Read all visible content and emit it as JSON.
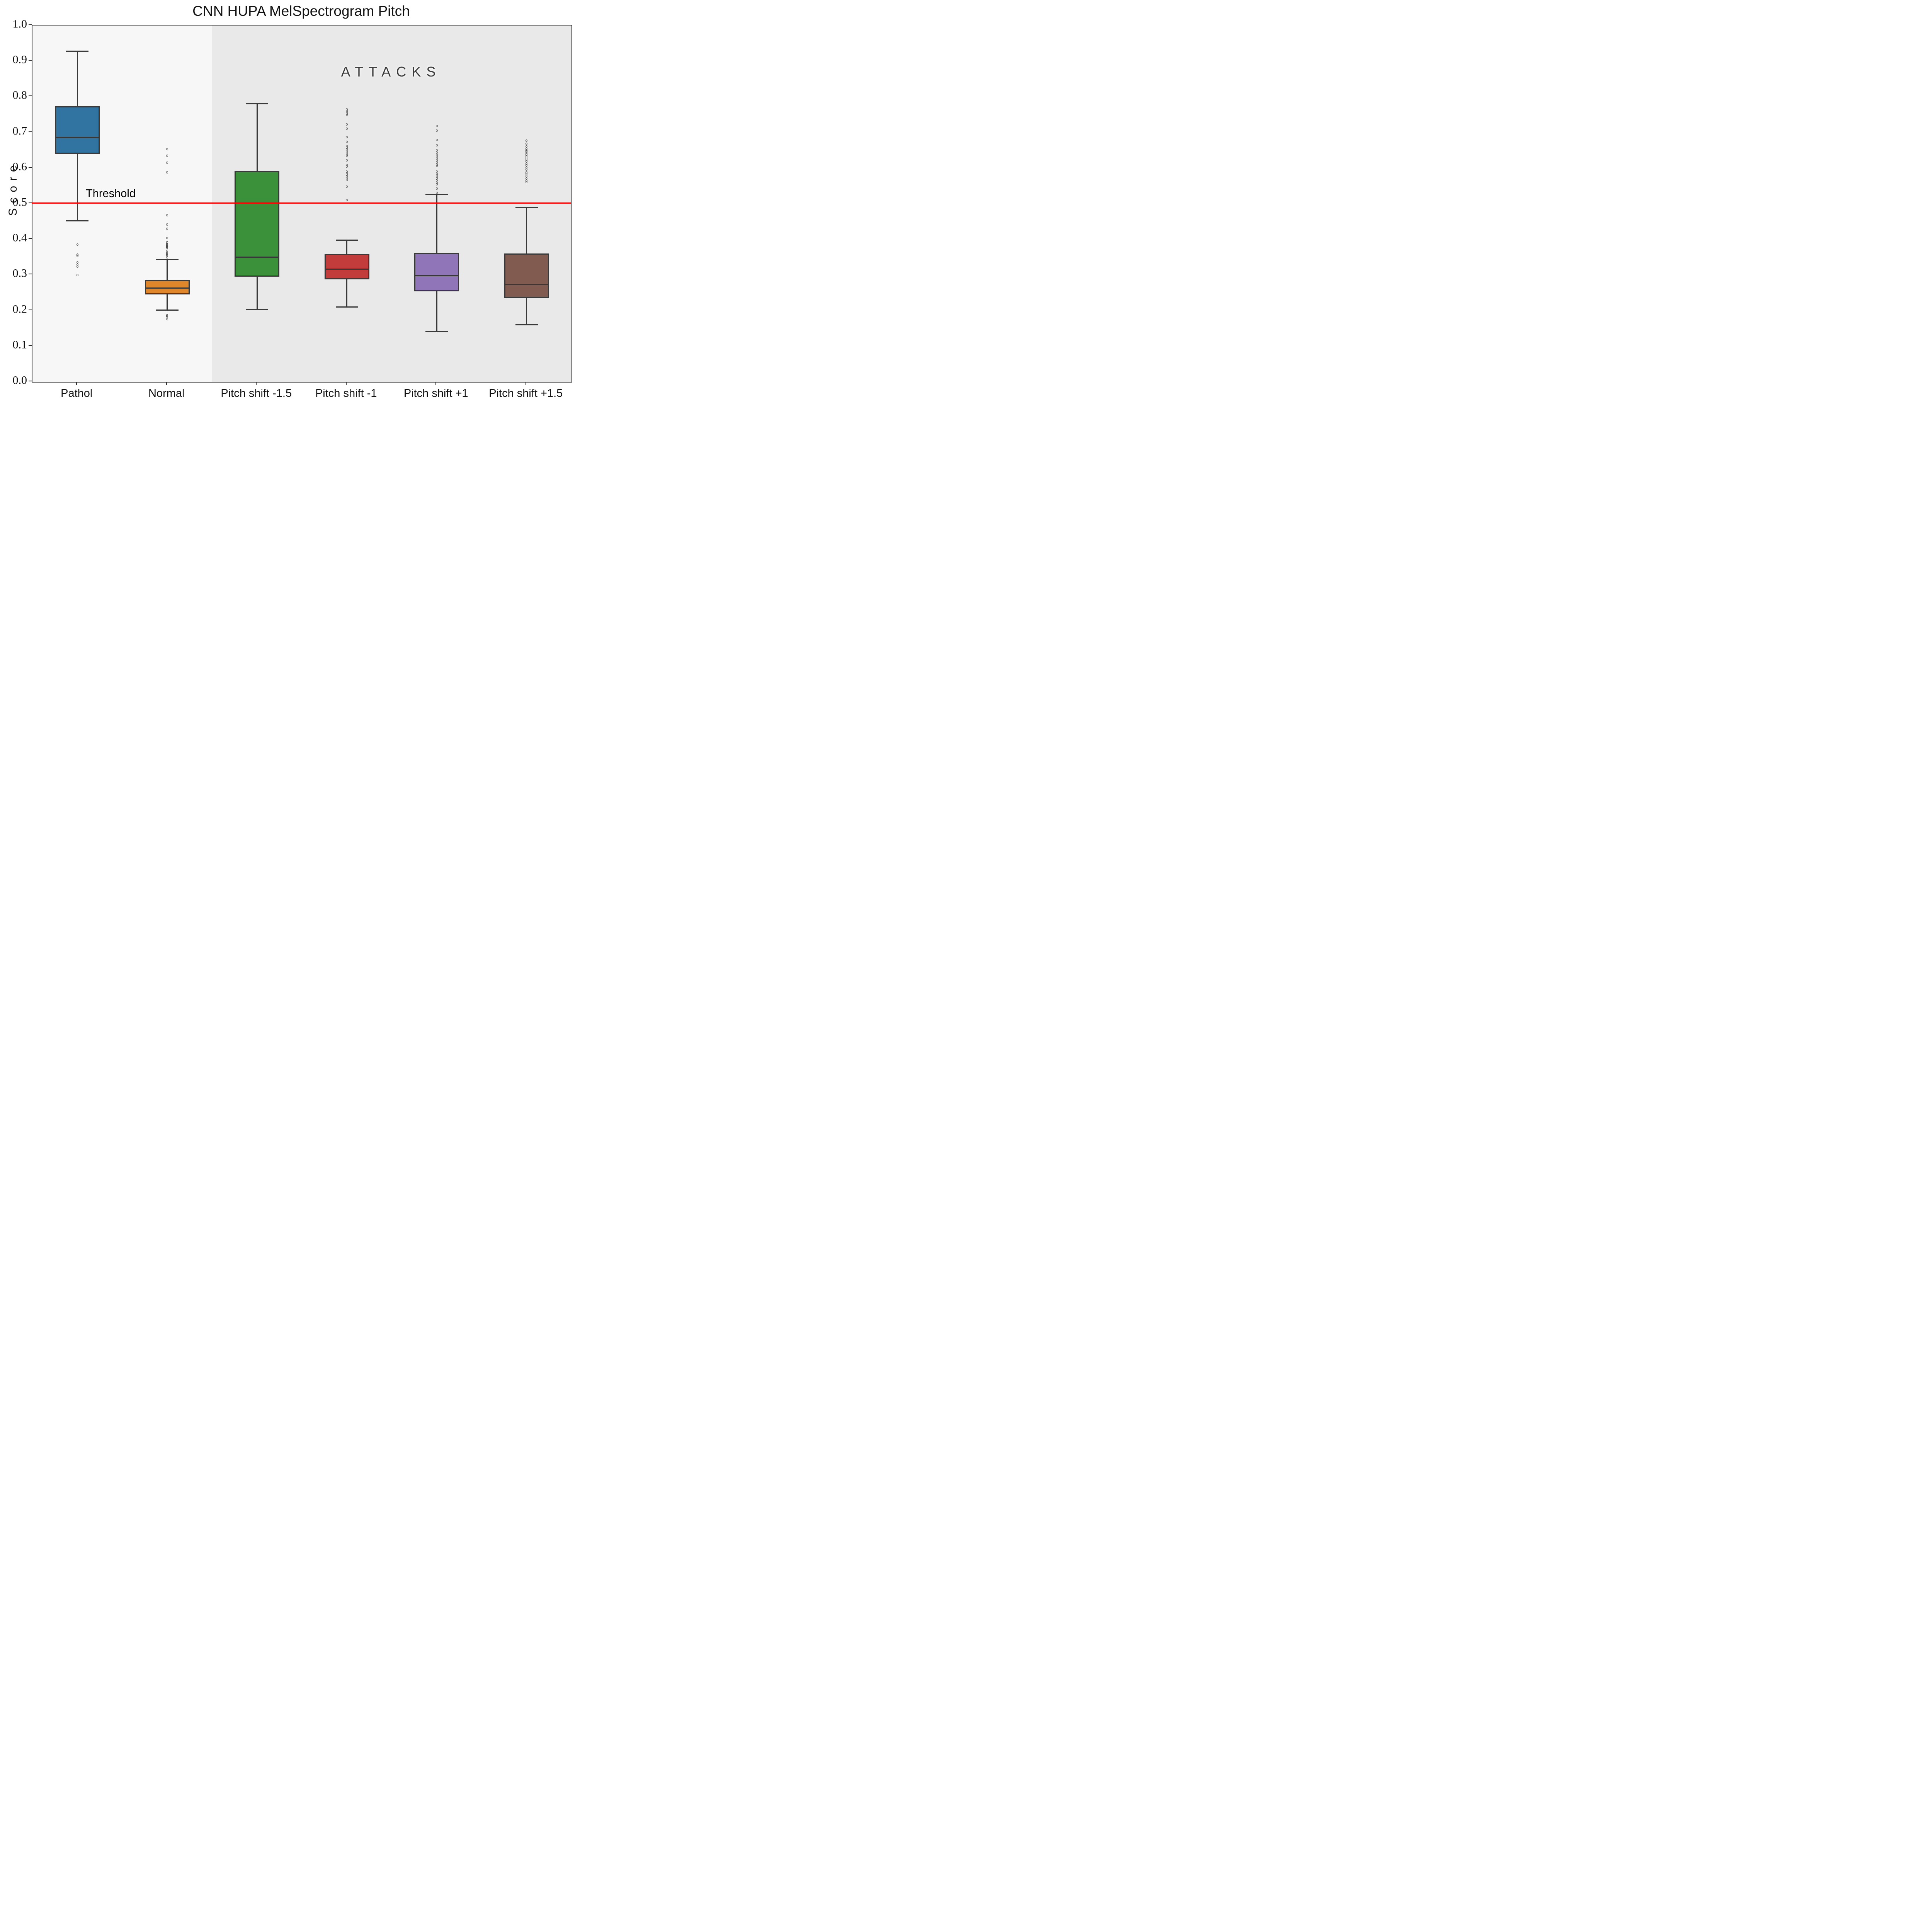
{
  "title": "CNN HUPA MelSpectrogram Pitch",
  "chart_data": {
    "type": "boxplot",
    "title": "CNN HUPA MelSpectrogram Pitch",
    "ylabel": "Score",
    "xlabel": "",
    "ylim": [
      0.0,
      1.0
    ],
    "ytick_values": [
      0.0,
      0.1,
      0.2,
      0.3,
      0.4,
      0.5,
      0.6,
      0.7,
      0.8,
      0.9,
      1.0
    ],
    "grid": false,
    "legend": "none",
    "categories": [
      "Pathol",
      "Normal",
      "Pitch shift -1.5",
      "Pitch shift -1",
      "Pitch shift +1",
      "Pitch shift +1.5"
    ],
    "threshold_line": {
      "value": 0.5,
      "label": "Threshold",
      "color": "#fb0000"
    },
    "annotations": [
      {
        "text": "A T T A C K S",
        "raw_text": "ATTACKS",
        "x_category_center": 3.5,
        "y_value": 0.862
      }
    ],
    "background_regions": [
      {
        "name": "originals-region",
        "x_from": -0.5,
        "x_to": 1.5,
        "color": "#f7f7f7"
      },
      {
        "name": "attacks-region",
        "x_from": 1.5,
        "x_to": 5.5,
        "color": "#e9e9e9"
      }
    ],
    "series": [
      {
        "name": "Pathol",
        "color": "#3274a1",
        "whisker_low": 0.452,
        "q1": 0.64,
        "median": 0.686,
        "q3": 0.773,
        "whisker_high": 0.928,
        "outliers": [
          0.385,
          0.357,
          0.354,
          0.335,
          0.329,
          0.323,
          0.299
        ]
      },
      {
        "name": "Normal",
        "color": "#df862b",
        "whisker_low": 0.201,
        "q1": 0.245,
        "median": 0.263,
        "q3": 0.286,
        "whisker_high": 0.343,
        "outliers": [
          0.176,
          0.183,
          0.185,
          0.187,
          0.349,
          0.355,
          0.357,
          0.36,
          0.362,
          0.368,
          0.376,
          0.377,
          0.379,
          0.38,
          0.382,
          0.383,
          0.385,
          0.387,
          0.39,
          0.392,
          0.403,
          0.429,
          0.441,
          0.468,
          0.588,
          0.615,
          0.635,
          0.653
        ]
      },
      {
        "name": "Pitch shift -1.5",
        "color": "#3a9139",
        "whisker_low": 0.202,
        "q1": 0.295,
        "median": 0.35,
        "q3": 0.592,
        "whisker_high": 0.78,
        "outliers": []
      },
      {
        "name": "Pitch shift -1",
        "color": "#c23c3c",
        "whisker_low": 0.21,
        "q1": 0.287,
        "median": 0.316,
        "q3": 0.359,
        "whisker_high": 0.398,
        "outliers": [
          0.51,
          0.548,
          0.566,
          0.572,
          0.577,
          0.581,
          0.586,
          0.59,
          0.604,
          0.609,
          0.621,
          0.634,
          0.637,
          0.642,
          0.647,
          0.653,
          0.657,
          0.662,
          0.673,
          0.687,
          0.71,
          0.722,
          0.75,
          0.753,
          0.757,
          0.76,
          0.765
        ]
      },
      {
        "name": "Pitch shift +1",
        "color": "#9175b9",
        "whisker_low": 0.14,
        "q1": 0.254,
        "median": 0.298,
        "q3": 0.362,
        "whisker_high": 0.525,
        "outliers": [
          0.53,
          0.542,
          0.554,
          0.559,
          0.565,
          0.57,
          0.575,
          0.58,
          0.584,
          0.59,
          0.606,
          0.61,
          0.615,
          0.62,
          0.626,
          0.631,
          0.637,
          0.643,
          0.65,
          0.664,
          0.679,
          0.705,
          0.718
        ]
      },
      {
        "name": "Pitch shift +1.5",
        "color": "#825b50",
        "whisker_low": 0.16,
        "q1": 0.235,
        "median": 0.273,
        "q3": 0.36,
        "whisker_high": 0.49,
        "outliers": [
          0.561,
          0.565,
          0.571,
          0.577,
          0.583,
          0.588,
          0.595,
          0.601,
          0.607,
          0.612,
          0.618,
          0.623,
          0.628,
          0.633,
          0.638,
          0.642,
          0.646,
          0.65,
          0.654,
          0.66,
          0.668,
          0.677
        ]
      }
    ],
    "styles": {
      "box_edge_color": "#3a3a3a",
      "spine_color": "#2e2e2e",
      "figure_background": "#ffffff",
      "left_band_color": "#f7f7f7",
      "right_band_color": "#e9e9e9",
      "flier_edge_color": "#484848"
    }
  }
}
